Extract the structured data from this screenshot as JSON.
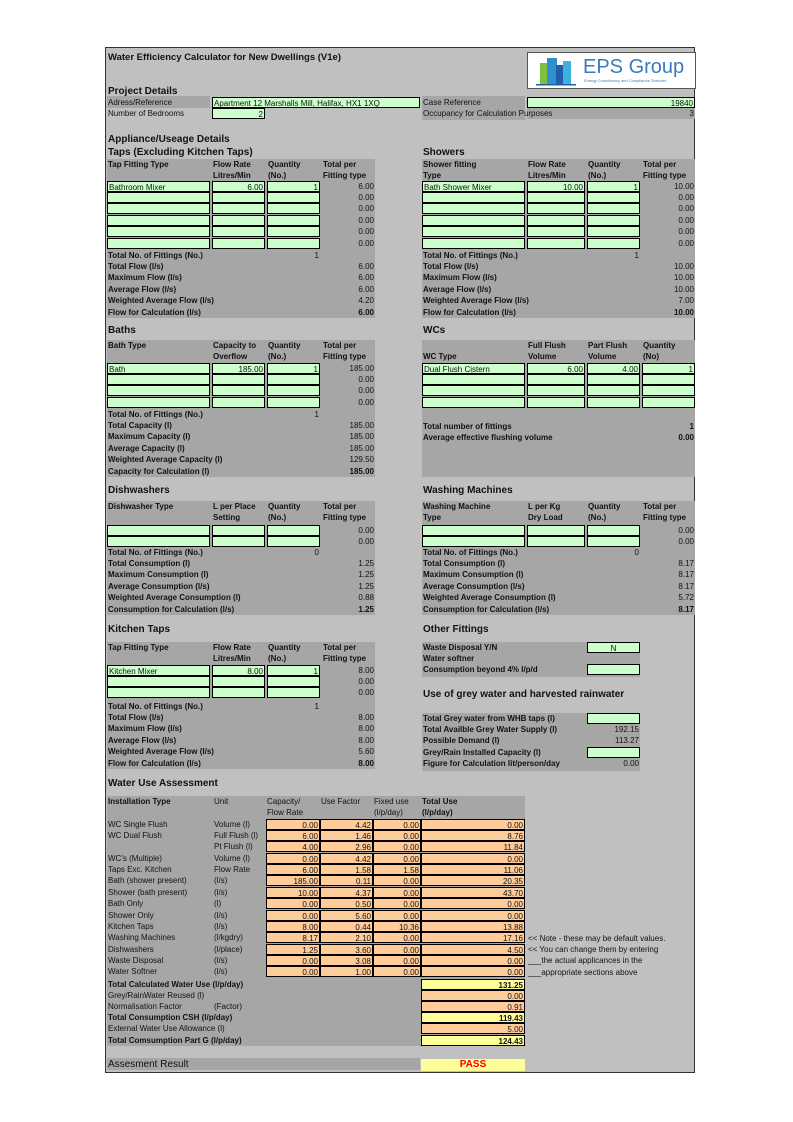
{
  "title": "Water Efficiency Calculator for New Dwellings (V1e)",
  "logo": {
    "text": "EPS Group",
    "tagline": "Energy Consultancy and Compliance Services",
    "color": "#3a7bbf"
  },
  "colors": {
    "sheet": "#c0c0c0",
    "label_block": "#a6a6a6",
    "input": "#ccffcc",
    "calc": "#ffcc99",
    "result": "#ffff99",
    "pass": "#ff0000"
  },
  "project": {
    "heading": "Project Details",
    "address_label": "Adress/Reference",
    "address": "Apartment 12 Marshalls Mill, Halifax, HX1 1XQ",
    "case_label": "Case Reference",
    "case": "19840",
    "bedrooms_label": "Number of Bedrooms",
    "bedrooms": "2",
    "occupancy_label": "Occupancy for Calculation Purposes",
    "occupancy": "3"
  },
  "appliance_heading": "Appliance/Useage Details",
  "taps": {
    "heading": "Taps (Excluding Kitchen Taps)",
    "headers": [
      "Tap Fitting Type",
      "Flow Rate\nLitres/Min",
      "Quantity\n(No.)",
      "Total per\nFitting type"
    ],
    "rows": [
      [
        "Bathroom Mixer",
        "6.00",
        "1",
        "6.00"
      ],
      [
        "",
        "",
        "",
        "0.00"
      ],
      [
        "",
        "",
        "",
        "0.00"
      ],
      [
        "",
        "",
        "",
        "0.00"
      ],
      [
        "",
        "",
        "",
        "0.00"
      ],
      [
        "",
        "",
        "",
        "0.00"
      ]
    ],
    "totals": [
      [
        "Total No. of Fittings (No.)",
        "1"
      ],
      [
        "Total Flow (l/s)",
        "6.00"
      ],
      [
        "Maximum Flow (l/s)",
        "6.00"
      ],
      [
        "Average Flow (l/s)",
        "6.00"
      ],
      [
        "Weighted Average Flow (l/s)",
        "4.20"
      ],
      [
        "Flow for Calculation (l/s)",
        "6.00"
      ]
    ]
  },
  "showers": {
    "heading": "Showers",
    "headers": [
      "Shower fitting\nType",
      "Flow Rate\nLitres/Min",
      "Quantity\n(No.)",
      "Total per\nFitting type"
    ],
    "rows": [
      [
        "Bath Shower Mixer",
        "10.00",
        "1",
        "10.00"
      ],
      [
        "",
        "",
        "",
        "0.00"
      ],
      [
        "",
        "",
        "",
        "0.00"
      ],
      [
        "",
        "",
        "",
        "0.00"
      ],
      [
        "",
        "",
        "",
        "0.00"
      ],
      [
        "",
        "",
        "",
        "0.00"
      ]
    ],
    "totals": [
      [
        "Total No. of Fittings (No.)",
        "1"
      ],
      [
        "Total Flow (l/s)",
        "10.00"
      ],
      [
        "Maximum Flow (l/s)",
        "10.00"
      ],
      [
        "Average Flow (l/s)",
        "10.00"
      ],
      [
        "Weighted Average Flow (l/s)",
        "7.00"
      ],
      [
        "Flow for Calculation (l/s)",
        "10.00"
      ]
    ]
  },
  "baths": {
    "heading": "Baths",
    "headers": [
      "Bath Type",
      "Capacity to\nOverflow",
      "Quantity\n(No.)",
      "Total per\nFitting type"
    ],
    "rows": [
      [
        "Bath",
        "185.00",
        "1",
        "185.00"
      ],
      [
        "",
        "",
        "",
        "0.00"
      ],
      [
        "",
        "",
        "",
        "0.00"
      ],
      [
        "",
        "",
        "",
        "0.00"
      ]
    ],
    "totals": [
      [
        "Total No. of Fittings (No.)",
        "1"
      ],
      [
        "Total Capacity (l)",
        "185.00"
      ],
      [
        "Maximum Capacity (l)",
        "185.00"
      ],
      [
        "Average Capacity (l)",
        "185.00"
      ],
      [
        "Weighted Average Capacity (l)",
        "129.50"
      ],
      [
        "Capacity for Calculation (l)",
        "185.00"
      ]
    ]
  },
  "wcs": {
    "heading": "WCs",
    "headers": [
      "\nWC Type",
      "Full Flush\nVolume",
      "Part Flush\nVolume",
      "Quantity\n(No)"
    ],
    "rows": [
      [
        "Dual Flush Cistern",
        "6.00",
        "4.00",
        "1"
      ],
      [
        "",
        "",
        "",
        ""
      ],
      [
        "",
        "",
        "",
        ""
      ],
      [
        "",
        "",
        "",
        ""
      ]
    ],
    "totals": [
      [
        "Total number of fittings",
        "1"
      ],
      [
        "Average effective flushing volume",
        "0.00"
      ]
    ]
  },
  "dishwashers": {
    "heading": "Dishwashers",
    "headers": [
      "Dishwasher Type",
      "L per Place\nSetting",
      "Quantity\n(No.)",
      "Total per\nFitting type"
    ],
    "rows": [
      [
        "",
        "",
        "",
        "0.00"
      ],
      [
        "",
        "",
        "",
        "0.00"
      ]
    ],
    "totals": [
      [
        "Total No. of Fittings (No.)",
        "0"
      ],
      [
        "Total Consumption (l)",
        "1.25"
      ],
      [
        "Maximum Consumption (l)",
        "1.25"
      ],
      [
        "Average Consumption (l/s)",
        "1.25"
      ],
      [
        "Weighted Average Consumption (l)",
        "0.88"
      ],
      [
        "Consumption for Calculation (l/s)",
        "1.25"
      ]
    ]
  },
  "washing": {
    "heading": "Washing Machines",
    "headers": [
      "Washing Machine\nType",
      "L per Kg\nDry Load",
      "Quantity\n(No.)",
      "Total per\nFitting type"
    ],
    "rows": [
      [
        "",
        "",
        "",
        "0.00"
      ],
      [
        "",
        "",
        "",
        "0.00"
      ]
    ],
    "totals": [
      [
        "Total No. of Fittings (No.)",
        "0"
      ],
      [
        "Total Consumption (l)",
        "8.17"
      ],
      [
        "Maximum Consumption (l)",
        "8.17"
      ],
      [
        "Average Consumption (l/s)",
        "8.17"
      ],
      [
        "Weighted Average Consumption (l)",
        "5.72"
      ],
      [
        "Consumption for Calculation (l/s)",
        "8.17"
      ]
    ]
  },
  "kitchen": {
    "heading": "Kitchen Taps",
    "headers": [
      "Tap Fitting Type",
      "Flow Rate\nLitres/Min",
      "Quantity\n(No.)",
      "Total per\nFitting type"
    ],
    "rows": [
      [
        "Kitchen Mixer",
        "8.00",
        "1",
        "8.00"
      ],
      [
        "",
        "",
        "",
        "0.00"
      ],
      [
        "",
        "",
        "",
        "0.00"
      ]
    ],
    "totals": [
      [
        "Total No. of Fittings (No.)",
        "1"
      ],
      [
        "Total Flow (l/s)",
        "8.00"
      ],
      [
        "Maximum Flow (l/s)",
        "8.00"
      ],
      [
        "Average Flow (l/s)",
        "8.00"
      ],
      [
        "Weighted Average Flow (l/s)",
        "5.60"
      ],
      [
        "Flow for Calculation (l/s)",
        "8.00"
      ]
    ]
  },
  "other": {
    "heading": "Other Fittings",
    "rows": [
      [
        "Waste Disposal Y/N",
        "N"
      ],
      [
        "Water softner",
        ""
      ],
      [
        "Consumption beyond 4% l/p/d",
        ""
      ]
    ]
  },
  "grey": {
    "heading": "Use of grey water and harvested rainwater",
    "rows": [
      [
        "Total Grey water from WHB taps (l)",
        ""
      ],
      [
        "Total Availble Grey Water Supply (l)",
        "192.15"
      ],
      [
        "Possible Demand (l)",
        "113.27"
      ],
      [
        "Grey/Rain Installed Capacity (l)",
        ""
      ],
      [
        "Figure for Calculation lit/person/day",
        "0.00"
      ]
    ]
  },
  "assessment": {
    "heading": "Water Use Assessment",
    "headers": [
      "Installation Type",
      "Unit",
      "Capacity/\nFlow Rate",
      "Use Factor",
      "Fixed use\n(l/p/day)",
      "Total Use\n(l/p/day)"
    ],
    "rows": [
      [
        "WC Single Flush",
        "Volume (l)",
        "0.00",
        "4.42",
        "0.00",
        "0.00"
      ],
      [
        "WC Dual Flush",
        "Full Flush (l)",
        "6.00",
        "1.46",
        "0.00",
        "8.76"
      ],
      [
        "",
        "Pt Flush (l)",
        "4.00",
        "2.96",
        "0.00",
        "11.84"
      ],
      [
        "WC's (Multiple)",
        "Volume (l)",
        "0.00",
        "4.42",
        "0.00",
        "0.00"
      ],
      [
        "Taps Exc. Kitchen",
        "Flow Rate",
        "6.00",
        "1.58",
        "1.58",
        "11.06"
      ],
      [
        "Bath (shower present)",
        "(l/s)",
        "185.00",
        "0.11",
        "0.00",
        "20.35"
      ],
      [
        "Shower (bath present)",
        "(l/s)",
        "10.00",
        "4.37",
        "0.00",
        "43.70"
      ],
      [
        "Bath Only",
        "(l)",
        "0.00",
        "0.50",
        "0.00",
        "0.00"
      ],
      [
        "Shower Only",
        "(l/s)",
        "0.00",
        "5.60",
        "0.00",
        "0.00"
      ],
      [
        "Kitchen Taps",
        "(l/s)",
        "8.00",
        "0.44",
        "10.36",
        "13.88"
      ],
      [
        "Washing Machines",
        "(l/kgdry)",
        "8.17",
        "2.10",
        "0.00",
        "17.16"
      ],
      [
        "Dishwashers",
        "(l/place)",
        "1.25",
        "3.60",
        "0.00",
        "4.50"
      ],
      [
        "Waste Disposal",
        "(l/s)",
        "0.00",
        "3.08",
        "0.00",
        "0.00"
      ],
      [
        "Water Softner",
        "(l/s)",
        "0.00",
        "1.00",
        "0.00",
        "0.00"
      ]
    ],
    "notes": [
      "<< Note - these may be default values.",
      "<< You can change them by entering",
      "___the actual applicances in the",
      "___appropriate sections above"
    ],
    "totals": [
      [
        "Total Calculated Water Use (l/p/day)",
        "",
        "131.25",
        true
      ],
      [
        "Grey/RainWater Reused (l)",
        "",
        "0.00",
        false
      ],
      [
        "Normalisation Factor",
        "(Factor)",
        "0.91",
        false
      ],
      [
        "Total Consumption CSH (l/p/day)",
        "",
        "119.43",
        true
      ],
      [
        "External Water Use Allowance (l)",
        "",
        "5.00",
        false
      ],
      [
        "Total Comsumption Part G (l/p/day)",
        "",
        "124.43",
        true
      ]
    ],
    "result_label": "Assesment Result",
    "result": "PASS"
  }
}
